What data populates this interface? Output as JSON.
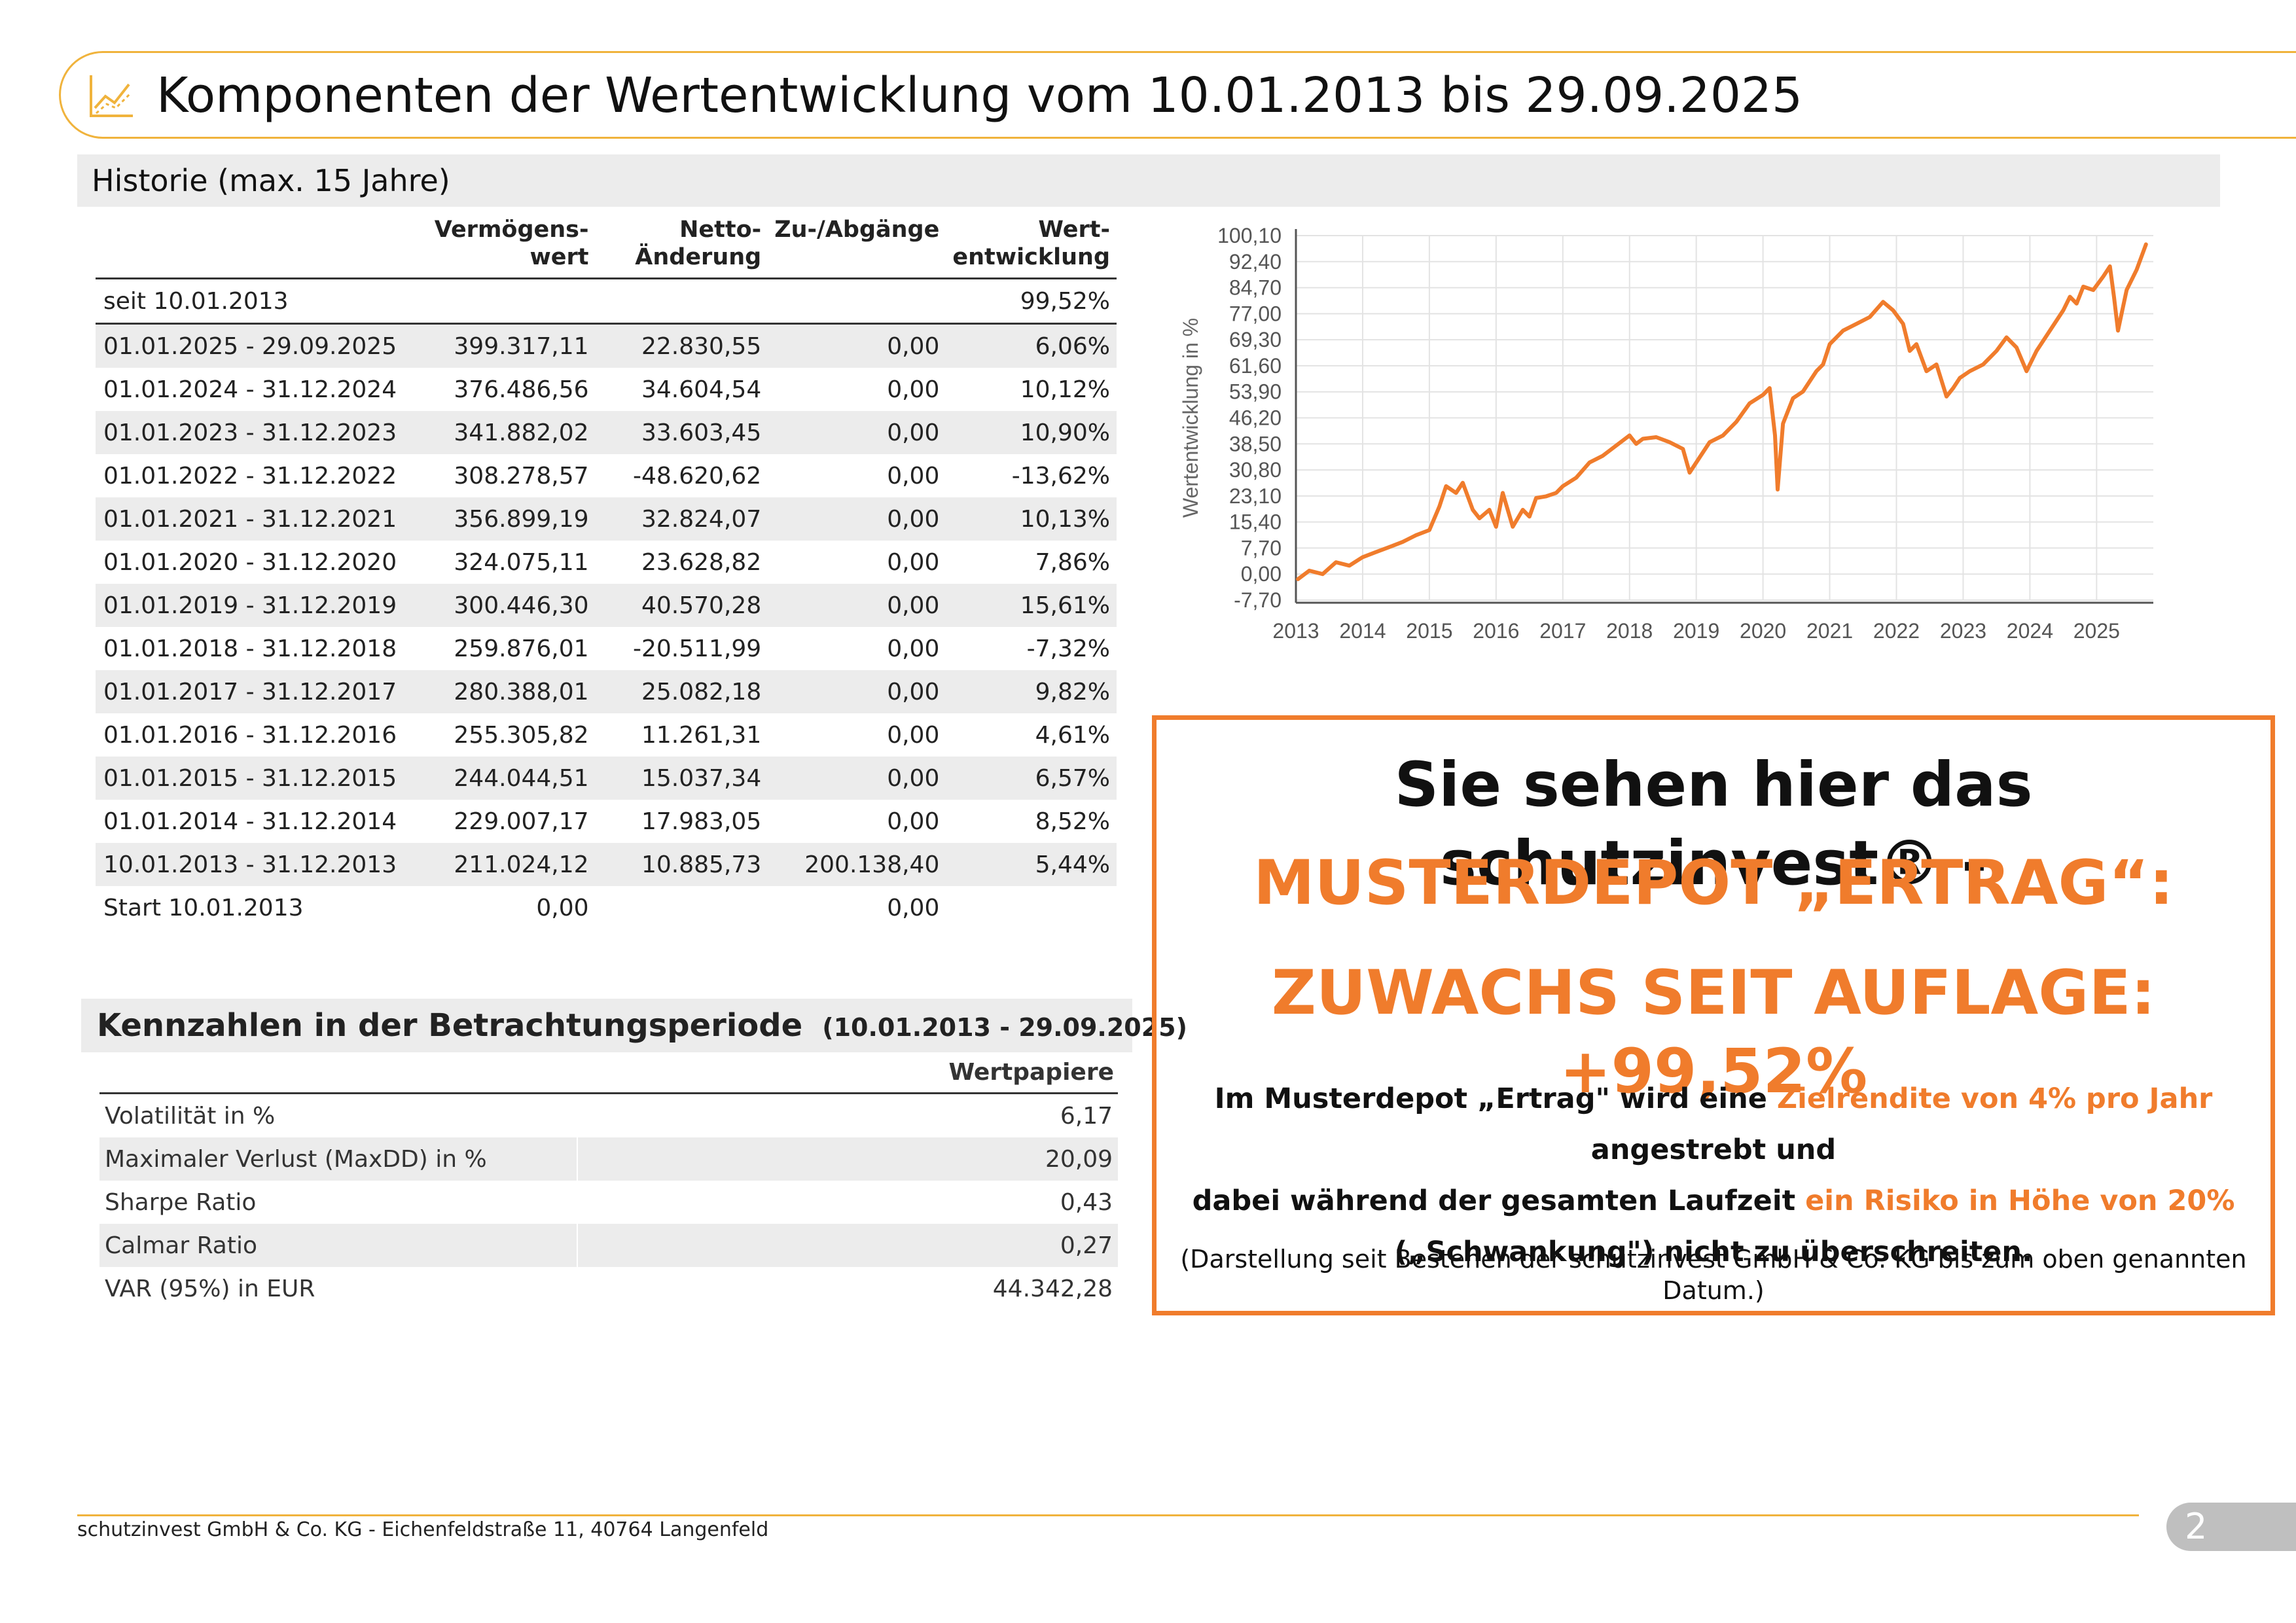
{
  "header": {
    "title": "Komponenten der Wertentwicklung vom 10.01.2013 bis 29.09.2025",
    "icon": "line-chart-icon"
  },
  "history": {
    "title": "Historie (max. 15 Jahre)",
    "columns": [
      "",
      "Vermögens-|wert",
      "Netto-|Änderung",
      "Zu-/Abgänge",
      "Wert-|entwicklung"
    ],
    "col_top": [
      "",
      "Vermögens-",
      "Netto-",
      "Zu-/Abgänge",
      "Wert-"
    ],
    "col_bottom": [
      "",
      "wert",
      "Änderung",
      "",
      "entwicklung"
    ],
    "rows": [
      [
        "seit 10.01.2013",
        "",
        "",
        "",
        "99,52%"
      ],
      [
        "01.01.2025 - 29.09.2025",
        "399.317,11",
        "22.830,55",
        "0,00",
        "6,06%"
      ],
      [
        "01.01.2024 - 31.12.2024",
        "376.486,56",
        "34.604,54",
        "0,00",
        "10,12%"
      ],
      [
        "01.01.2023 - 31.12.2023",
        "341.882,02",
        "33.603,45",
        "0,00",
        "10,90%"
      ],
      [
        "01.01.2022 - 31.12.2022",
        "308.278,57",
        "-48.620,62",
        "0,00",
        "-13,62%"
      ],
      [
        "01.01.2021 - 31.12.2021",
        "356.899,19",
        "32.824,07",
        "0,00",
        "10,13%"
      ],
      [
        "01.01.2020 - 31.12.2020",
        "324.075,11",
        "23.628,82",
        "0,00",
        "7,86%"
      ],
      [
        "01.01.2019 - 31.12.2019",
        "300.446,30",
        "40.570,28",
        "0,00",
        "15,61%"
      ],
      [
        "01.01.2018 - 31.12.2018",
        "259.876,01",
        "-20.511,99",
        "0,00",
        "-7,32%"
      ],
      [
        "01.01.2017 - 31.12.2017",
        "280.388,01",
        "25.082,18",
        "0,00",
        "9,82%"
      ],
      [
        "01.01.2016 - 31.12.2016",
        "255.305,82",
        "11.261,31",
        "0,00",
        "4,61%"
      ],
      [
        "01.01.2015 - 31.12.2015",
        "244.044,51",
        "15.037,34",
        "0,00",
        "6,57%"
      ],
      [
        "01.01.2014 - 31.12.2014",
        "229.007,17",
        "17.983,05",
        "0,00",
        "8,52%"
      ],
      [
        "10.01.2013 - 31.12.2013",
        "211.024,12",
        "10.885,73",
        "200.138,40",
        "5,44%"
      ],
      [
        "Start 10.01.2013",
        "0,00",
        "",
        "0,00",
        ""
      ]
    ]
  },
  "kennzahlen": {
    "title": "Kennzahlen in der Betrachtungsperiode",
    "period": "(10.01.2013 - 29.09.2025)",
    "column": "Wertpapiere",
    "rows": [
      [
        "Volatilität in %",
        "6,17"
      ],
      [
        "Maximaler Verlust (MaxDD) in %",
        "20,09"
      ],
      [
        "Sharpe Ratio",
        "0,43"
      ],
      [
        "Calmar Ratio",
        "0,27"
      ],
      [
        "VAR (95%) in EUR",
        "44.342,28"
      ]
    ]
  },
  "chart_data": {
    "type": "line",
    "ylabel": "Wertentwicklung in %",
    "yticks": [
      "100,10",
      "92,40",
      "84,70",
      "77,00",
      "69,30",
      "61,60",
      "53,90",
      "46,20",
      "38,50",
      "30,80",
      "23,10",
      "15,40",
      "7,70",
      "0,00",
      "-7,70"
    ],
    "ylim": [
      -7.7,
      100.1
    ],
    "xticks": [
      "2013",
      "2014",
      "2015",
      "2016",
      "2017",
      "2018",
      "2019",
      "2020",
      "2021",
      "2022",
      "2023",
      "2024",
      "2025"
    ],
    "xlim": [
      2013.0,
      2025.85
    ],
    "grid": true,
    "color": "#f07c2c",
    "series": [
      {
        "x": [
          2013.03,
          2013.2,
          2013.4,
          2013.6,
          2013.8,
          2014.0,
          2014.2,
          2014.4,
          2014.6,
          2014.8,
          2015.0,
          2015.15,
          2015.25,
          2015.4,
          2015.5,
          2015.65,
          2015.75,
          2015.9,
          2016.0,
          2016.1,
          2016.25,
          2016.4,
          2016.5,
          2016.6,
          2016.75,
          2016.9,
          2017.0,
          2017.2,
          2017.4,
          2017.6,
          2017.8,
          2018.0,
          2018.1,
          2018.2,
          2018.4,
          2018.6,
          2018.8,
          2018.9,
          2019.0,
          2019.2,
          2019.4,
          2019.6,
          2019.8,
          2020.0,
          2020.1,
          2020.18,
          2020.22,
          2020.3,
          2020.45,
          2020.6,
          2020.8,
          2020.9,
          2021.0,
          2021.2,
          2021.4,
          2021.6,
          2021.8,
          2021.95,
          2022.1,
          2022.2,
          2022.3,
          2022.45,
          2022.6,
          2022.75,
          2022.85,
          2022.95,
          2023.1,
          2023.3,
          2023.5,
          2023.65,
          2023.8,
          2023.95,
          2024.1,
          2024.3,
          2024.5,
          2024.6,
          2024.7,
          2024.8,
          2024.95,
          2025.1,
          2025.2,
          2025.26,
          2025.32,
          2025.45,
          2025.6,
          2025.74
        ],
        "y": [
          -1.5,
          1.0,
          0.0,
          3.5,
          2.5,
          5.0,
          6.5,
          8.0,
          9.5,
          11.5,
          13.0,
          20.0,
          26.0,
          24.0,
          27.0,
          19.0,
          16.5,
          19.0,
          14.0,
          24.0,
          14.0,
          19.0,
          17.0,
          22.5,
          23.0,
          24.0,
          26.0,
          28.5,
          33.0,
          35.0,
          38.0,
          41.0,
          38.5,
          40.0,
          40.5,
          39.0,
          37.0,
          30.0,
          33.0,
          39.0,
          41.0,
          45.0,
          50.5,
          53.0,
          55.0,
          41.0,
          25.0,
          44.5,
          52.0,
          54.0,
          60.0,
          62.0,
          68.0,
          72.0,
          74.0,
          76.0,
          80.5,
          78.0,
          74.0,
          66.0,
          68.0,
          60.0,
          62.0,
          52.5,
          55.0,
          58.0,
          60.0,
          62.0,
          66.0,
          70.0,
          67.0,
          60.0,
          66.0,
          72.0,
          78.0,
          82.0,
          80.0,
          85.0,
          84.0,
          88.0,
          91.0,
          82.0,
          72.0,
          84.0,
          90.0,
          97.5
        ]
      }
    ]
  },
  "promo": {
    "line1": "Sie sehen hier das schutzinvest® -",
    "line2": "MUSTERDEPOT „ERTRAG“:",
    "line3": "ZUWACHS SEIT AUFLAGE: +99,52%",
    "p1_a": "Im Musterdepot „Ertrag\" wird eine ",
    "p1_b": "Zielrendite von 4% pro Jahr",
    "p1_c": " angestrebt und",
    "p2_a": "dabei während der gesamten Laufzeit ",
    "p2_b": "ein Risiko in Höhe von 20%",
    "p3": "(„Schwankung\") nicht zu überschreiten.",
    "note": "(Darstellung seit Bestehen der schutzinvest GmbH & Co. KG bis zum oben genannten Datum.)",
    "accent": "#f07c2c"
  },
  "footer": {
    "text": "schutzinvest GmbH & Co. KG - Eichenfeldstraße 11, 40764 Langenfeld",
    "page": "2"
  }
}
